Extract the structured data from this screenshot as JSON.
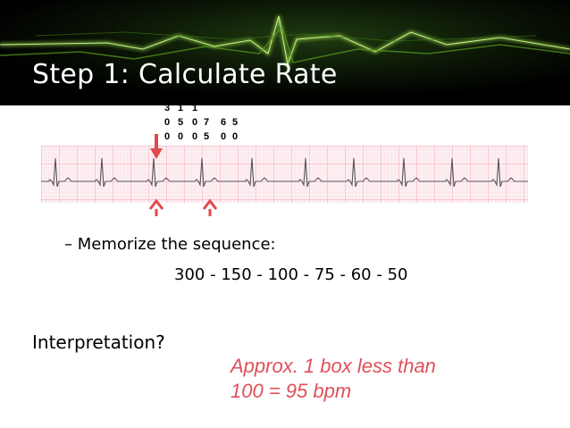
{
  "slide": {
    "title": "Step 1: Calculate Rate",
    "bullet": "– Memorize the sequence:",
    "sequence": "300 - 150 - 100 - 75 - 60 - 50",
    "question": "Interpretation?",
    "answer_line1": "Approx. 1 box less than",
    "answer_line2": "100 = 95 bpm"
  },
  "strip_labels": [
    [
      "3",
      "0",
      "0"
    ],
    [
      "1",
      "5",
      "0"
    ],
    [
      "1",
      "0",
      "0"
    ],
    [
      "",
      "7",
      "5"
    ],
    [
      "",
      "6",
      "0"
    ],
    [
      "",
      "5",
      "0"
    ]
  ],
  "colors": {
    "header_bg": "#000000",
    "header_glow": "#7acc2e",
    "title_text": "#ffffff",
    "answer_text": "#e0505a",
    "marker_red": "#e04a4a",
    "grid_pink": "#f5b3c0"
  }
}
